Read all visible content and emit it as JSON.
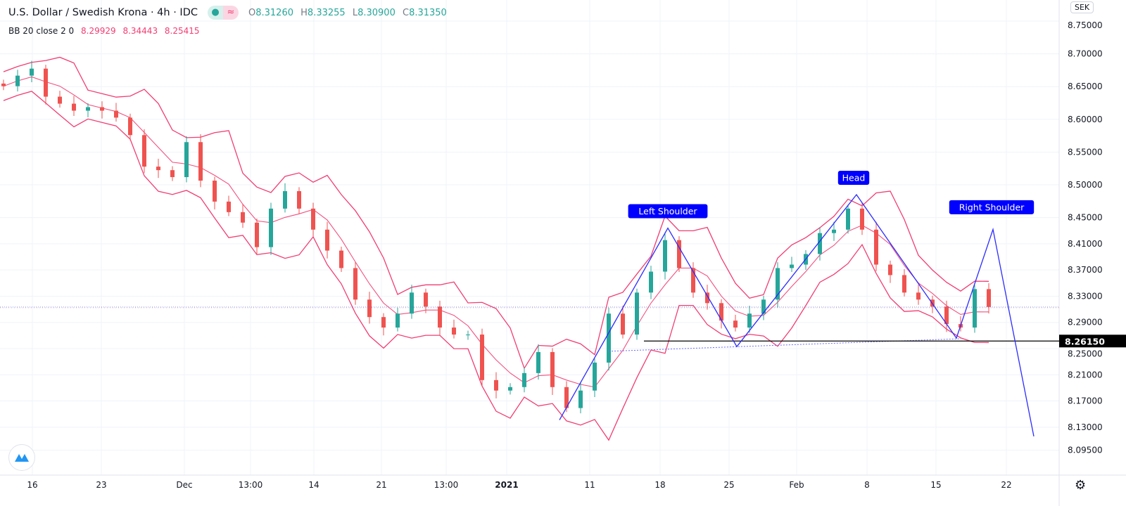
{
  "header": {
    "symbol": "U.S. Dollar / Swedish Krona · 4h · IDC",
    "open_label": "O",
    "open": "8.31260",
    "high_label": "H",
    "high": "8.33255",
    "low_label": "L",
    "low": "8.30900",
    "close_label": "C",
    "close": "8.31350",
    "indicator": "BB 20 close 2 0",
    "bb_basis": "8.29929",
    "bb_upper": "8.34443",
    "bb_lower": "8.25415",
    "currency": "SEK"
  },
  "icons": {
    "status": "dot-icon",
    "indicator": "wave-icon",
    "settings": "gear-icon",
    "logo": "tradingview-logo-icon"
  },
  "colors": {
    "up": "#26a69a",
    "down": "#ef5350",
    "band": "#f23d72",
    "pattern": "#2b2bff",
    "neckline": "#000000",
    "label_bg": "#0000ff"
  },
  "chart_data": {
    "type": "candlestick",
    "title": "U.S. Dollar / Swedish Krona · 4h · IDC",
    "x_tick_labels": [
      "16",
      "23",
      "Dec",
      "13:00",
      "14",
      "21",
      "13:00",
      "2021",
      "11",
      "18",
      "25",
      "Feb",
      "8",
      "15",
      "22"
    ],
    "x_tick_index": [
      2.3,
      7.2,
      13.1,
      17.8,
      22.3,
      27.1,
      31.7,
      36,
      41.9,
      46.9,
      51.8,
      56.6,
      61.6,
      66.5,
      71.5
    ],
    "y_tick_labels": [
      "8.75000",
      "8.70000",
      "8.65000",
      "8.60000",
      "8.55000",
      "8.50000",
      "8.45000",
      "8.41000",
      "8.37000",
      "8.33000",
      "8.29000",
      "8.25000",
      "8.21000",
      "8.17000",
      "8.13000",
      "8.09500"
    ],
    "ylim": [
      8.065,
      8.782
    ],
    "closes": [
      8.6506,
      8.6667,
      8.6774,
      8.6346,
      8.6239,
      8.6132,
      8.6186,
      8.6132,
      8.6026,
      8.5759,
      8.5278,
      8.5224,
      8.5118,
      8.5652,
      8.5064,
      8.4744,
      8.4583,
      8.4423,
      8.4049,
      8.4637,
      8.4904,
      8.4637,
      8.4316,
      8.3996,
      8.3729,
      8.3248,
      8.2981,
      8.2821,
      8.3034,
      8.3355,
      8.3141,
      8.2821,
      8.2714,
      8.2714,
      8.2019,
      8.1859,
      8.1912,
      8.2126,
      8.2447,
      8.1912,
      8.1592,
      8.1859,
      8.2286,
      8.3034,
      8.2714,
      8.3355,
      8.3675,
      8.4156,
      8.3729,
      8.3355,
      8.3194,
      8.2927,
      8.2821,
      8.3034,
      8.3248,
      8.3729,
      8.3782,
      8.3944,
      8.4263,
      8.4316,
      8.4637,
      8.4316,
      8.3782,
      8.3622,
      8.3355,
      8.3248,
      8.3141,
      8.2874,
      8.2821,
      8.3408,
      8.3135
    ],
    "bollinger": {
      "period": 20,
      "stddev": 2
    },
    "last_price": 8.3135,
    "neckline": {
      "price": 8.2615,
      "label": "8.26150",
      "from_index": 46
    },
    "support_trend": {
      "from": [
        43,
        8.262
      ],
      "to": [
        68,
        8.265
      ]
    },
    "pattern_path": [
      [
        39.5,
        8.141
      ],
      [
        47.2,
        8.434
      ],
      [
        52.1,
        8.253
      ],
      [
        60.6,
        8.485
      ],
      [
        67.7,
        8.266
      ],
      [
        70.3,
        8.432
      ],
      [
        73.2,
        8.116
      ]
    ],
    "annotations": [
      {
        "text": "Left Shoulder",
        "index": 47.2,
        "price": 8.434
      },
      {
        "text": "Head",
        "index": 60.4,
        "price": 8.485
      },
      {
        "text": "Right Shoulder",
        "index": 70.2,
        "price": 8.44
      }
    ]
  }
}
